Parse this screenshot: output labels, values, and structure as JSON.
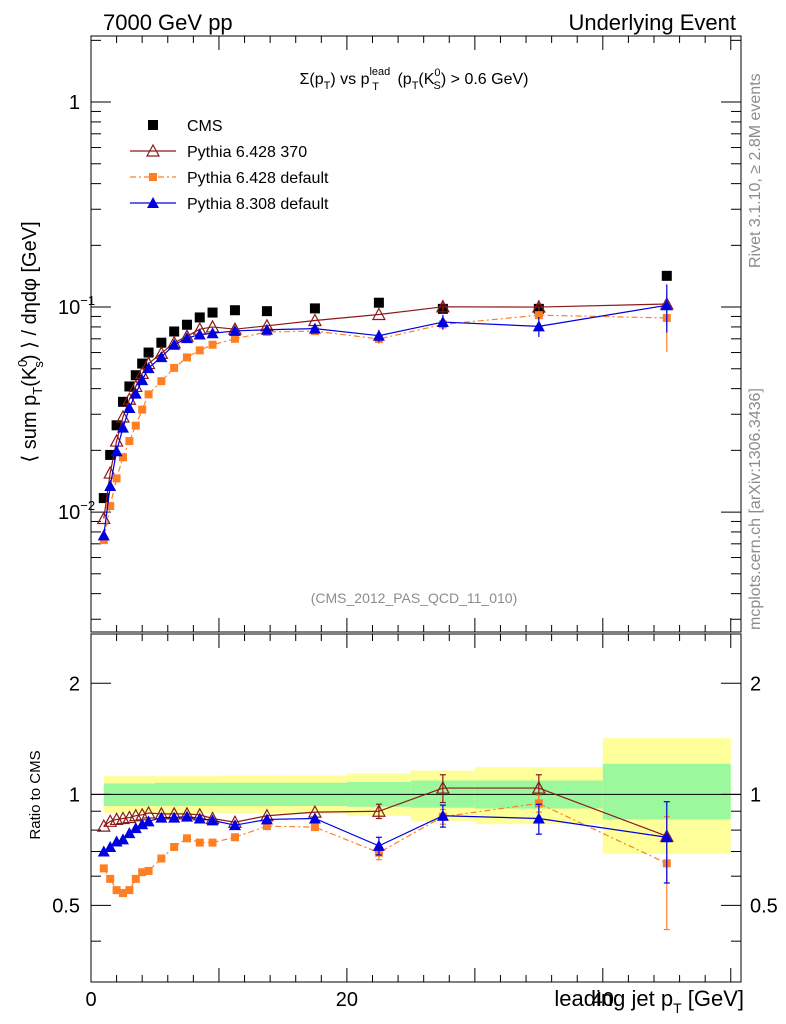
{
  "header": {
    "left": "7000 GeV pp",
    "right": "Underlying Event"
  },
  "side": {
    "rivet": "Rivet 3.1.10, ≥ 2.8M events",
    "mcplots": "mcplots.cern.ch [arXiv:1306.3436]"
  },
  "plot_title": {
    "prefix": "Σ(p",
    "sub_T": "T",
    "vs": ") vs p",
    "sup_lead": "lead",
    "sub_T2": "T",
    "cond_open": " (p",
    "sub_T3": "T",
    "k": "(K",
    "sup_0": "0",
    "sub_S": "S",
    "cond_close": ") > 0.6 GeV)"
  },
  "analysis_tag": "(CMS_2012_PAS_QCD_11_010)",
  "top_ylabel": {
    "a": "⟨ sum p",
    "sub_T": "T",
    "b": "(K",
    "sup_0": "0",
    "sub_s": "s",
    "c": ") ⟩ / dηdφ [GeV]"
  },
  "bottom_ylabel": "Ratio to CMS",
  "xlabel": {
    "a": "leading jet p",
    "sub_T": "T",
    "b": " [GeV]"
  },
  "top_yticks": [
    {
      "v": 0.01,
      "base": "10",
      "exp": "−2"
    },
    {
      "v": 0.1,
      "base": "10",
      "exp": "−1"
    },
    {
      "v": 1,
      "base": "1",
      "exp": ""
    }
  ],
  "bottom_yticks": [
    "0.5",
    "1",
    "2"
  ],
  "xticks": [
    "0",
    "20",
    "40"
  ],
  "colors": {
    "cms": "#000000",
    "p6_370": "#8b1a1a",
    "p6_default": "#ff7f24",
    "p8_default": "#0000e0",
    "band_inner": "#9cf89c",
    "band_outer": "#ffff99"
  },
  "chart_data": [
    {
      "type": "scatter",
      "panel": "main",
      "ylog": true,
      "xlim": [
        0,
        50.8
      ],
      "ylim": [
        0.0026,
        2.1
      ],
      "series": [
        {
          "name": "CMS",
          "marker": "square",
          "x": [
            1.0,
            1.5,
            2.0,
            2.5,
            3.0,
            3.5,
            4.0,
            4.5,
            5.5,
            6.5,
            7.5,
            8.5,
            9.5,
            11.25,
            13.75,
            17.5,
            22.5,
            27.5,
            35.0,
            45.0
          ],
          "y": [
            0.0117,
            0.019,
            0.0265,
            0.0345,
            0.041,
            0.0465,
            0.053,
            0.06,
            0.067,
            0.076,
            0.082,
            0.089,
            0.094,
            0.0965,
            0.0955,
            0.0985,
            0.105,
            0.098,
            0.098,
            0.142
          ]
        },
        {
          "name": "Pythia 6.428 370",
          "marker": "open-triangle",
          "x": [
            1.0,
            1.5,
            2.0,
            2.5,
            3.0,
            3.5,
            4.0,
            4.5,
            5.5,
            6.5,
            7.5,
            8.5,
            9.5,
            11.25,
            13.75,
            17.5,
            22.5,
            27.5,
            35.0,
            45.0
          ],
          "y": [
            0.0093,
            0.0155,
            0.0222,
            0.0291,
            0.0355,
            0.041,
            0.0475,
            0.053,
            0.0595,
            0.067,
            0.072,
            0.078,
            0.08,
            0.078,
            0.081,
            0.086,
            0.092,
            0.1003,
            0.1,
            0.1035
          ],
          "err": [
            0,
            0,
            0,
            0,
            0,
            0,
            0,
            0,
            0,
            0,
            0,
            0,
            0,
            0,
            0,
            0,
            0,
            0.008,
            0.008,
            0
          ]
        },
        {
          "name": "Pythia 6.428 default",
          "marker": "filled-square",
          "x": [
            1.0,
            1.5,
            2.0,
            2.5,
            3.0,
            3.5,
            4.0,
            4.5,
            5.5,
            6.5,
            7.5,
            8.5,
            9.5,
            11.25,
            13.75,
            17.5,
            22.5,
            27.5,
            35.0,
            45.0
          ],
          "y": [
            0.0073,
            0.0107,
            0.0146,
            0.0185,
            0.0222,
            0.0264,
            0.0316,
            0.0375,
            0.0435,
            0.0505,
            0.0568,
            0.0615,
            0.0655,
            0.07,
            0.0756,
            0.0763,
            0.0699,
            0.0823,
            0.0913,
            0.0885
          ],
          "err": [
            0,
            0,
            0,
            0,
            0,
            0,
            0,
            0,
            0,
            0,
            0,
            0,
            0,
            0,
            0,
            0,
            0.004,
            0.004,
            0.004,
            0.028
          ]
        },
        {
          "name": "Pythia 8.308 default",
          "marker": "filled-triangle",
          "x": [
            1.0,
            1.5,
            2.0,
            2.5,
            3.0,
            3.5,
            4.0,
            4.5,
            5.5,
            6.5,
            7.5,
            8.5,
            9.5,
            11.25,
            13.75,
            17.5,
            22.5,
            27.5,
            35.0,
            45.0
          ],
          "y": [
            0.0077,
            0.0134,
            0.0198,
            0.0258,
            0.0322,
            0.0378,
            0.044,
            0.0504,
            0.057,
            0.0655,
            0.0705,
            0.0735,
            0.0745,
            0.0765,
            0.0775,
            0.0785,
            0.0725,
            0.0845,
            0.0805,
            0.102
          ],
          "err": [
            0,
            0,
            0,
            0,
            0,
            0,
            0,
            0,
            0,
            0,
            0,
            0,
            0,
            0,
            0,
            0,
            0.005,
            0.007,
            0.009,
            0.027
          ]
        }
      ]
    },
    {
      "type": "line",
      "panel": "ratio",
      "ylabel": "Ratio to CMS",
      "xlabel": "leading jet pT [GeV]",
      "xlim": [
        0,
        50.8
      ],
      "ylim": [
        0.31,
        2.72
      ],
      "ylog": true,
      "reference": 1,
      "bands": [
        {
          "x0": 1.0,
          "x1": 5.0,
          "inner": [
            0.93,
            1.07
          ],
          "outer": [
            0.89,
            1.12
          ]
        },
        {
          "x0": 5.0,
          "x1": 10.0,
          "inner": [
            0.93,
            1.075
          ],
          "outer": [
            0.89,
            1.12
          ]
        },
        {
          "x0": 10.0,
          "x1": 15.0,
          "inner": [
            0.93,
            1.075
          ],
          "outer": [
            0.89,
            1.125
          ]
        },
        {
          "x0": 15.0,
          "x1": 20.0,
          "inner": [
            0.93,
            1.075
          ],
          "outer": [
            0.885,
            1.125
          ]
        },
        {
          "x0": 20.0,
          "x1": 25.0,
          "inner": [
            0.925,
            1.08
          ],
          "outer": [
            0.875,
            1.14
          ]
        },
        {
          "x0": 25.0,
          "x1": 30.0,
          "inner": [
            0.92,
            1.09
          ],
          "outer": [
            0.845,
            1.16
          ]
        },
        {
          "x0": 30.0,
          "x1": 40.0,
          "inner": [
            0.915,
            1.09
          ],
          "outer": [
            0.83,
            1.185
          ]
        },
        {
          "x0": 40.0,
          "x1": 50.0,
          "inner": [
            0.855,
            1.21
          ],
          "outer": [
            0.69,
            1.42
          ]
        }
      ],
      "series": [
        {
          "name": "Pythia 6.428 370",
          "x": [
            1.0,
            1.5,
            2.0,
            2.5,
            3.0,
            3.5,
            4.0,
            4.5,
            5.5,
            6.5,
            7.5,
            8.5,
            9.5,
            11.25,
            13.75,
            17.5,
            22.5,
            27.5,
            35.0,
            45.0
          ],
          "y": [
            0.82,
            0.845,
            0.855,
            0.86,
            0.865,
            0.875,
            0.88,
            0.89,
            0.885,
            0.885,
            0.885,
            0.88,
            0.86,
            0.84,
            0.875,
            0.895,
            0.9,
            1.04,
            1.04,
            0.77
          ],
          "err": [
            0,
            0,
            0,
            0,
            0,
            0,
            0,
            0,
            0,
            0,
            0,
            0,
            0,
            0,
            0,
            0,
            0.04,
            0.09,
            0.09,
            0
          ]
        },
        {
          "name": "Pythia 6.428 default",
          "x": [
            1.0,
            1.5,
            2.0,
            2.5,
            3.0,
            3.5,
            4.0,
            4.5,
            5.5,
            6.5,
            7.5,
            8.5,
            9.5,
            11.25,
            13.75,
            17.5,
            22.5,
            27.5,
            35.0,
            45.0
          ],
          "y": [
            0.63,
            0.59,
            0.55,
            0.54,
            0.55,
            0.59,
            0.615,
            0.62,
            0.67,
            0.72,
            0.76,
            0.74,
            0.74,
            0.765,
            0.82,
            0.815,
            0.695,
            0.87,
            0.945,
            0.65
          ],
          "err": [
            0,
            0,
            0,
            0,
            0,
            0,
            0,
            0,
            0,
            0,
            0,
            0,
            0,
            0,
            0,
            0,
            0.03,
            0.04,
            0.05,
            0.22
          ]
        },
        {
          "name": "Pythia 8.308 default",
          "x": [
            1.0,
            1.5,
            2.0,
            2.5,
            3.0,
            3.5,
            4.0,
            4.5,
            5.5,
            6.5,
            7.5,
            8.5,
            9.5,
            11.25,
            13.75,
            17.5,
            22.5,
            27.5,
            35.0,
            45.0
          ],
          "y": [
            0.7,
            0.72,
            0.745,
            0.755,
            0.785,
            0.81,
            0.83,
            0.845,
            0.865,
            0.865,
            0.87,
            0.86,
            0.85,
            0.825,
            0.855,
            0.86,
            0.725,
            0.875,
            0.86,
            0.765
          ],
          "err": [
            0,
            0,
            0,
            0,
            0,
            0,
            0,
            0,
            0,
            0,
            0,
            0,
            0,
            0,
            0,
            0,
            0.04,
            0.06,
            0.08,
            0.19
          ]
        }
      ]
    }
  ]
}
